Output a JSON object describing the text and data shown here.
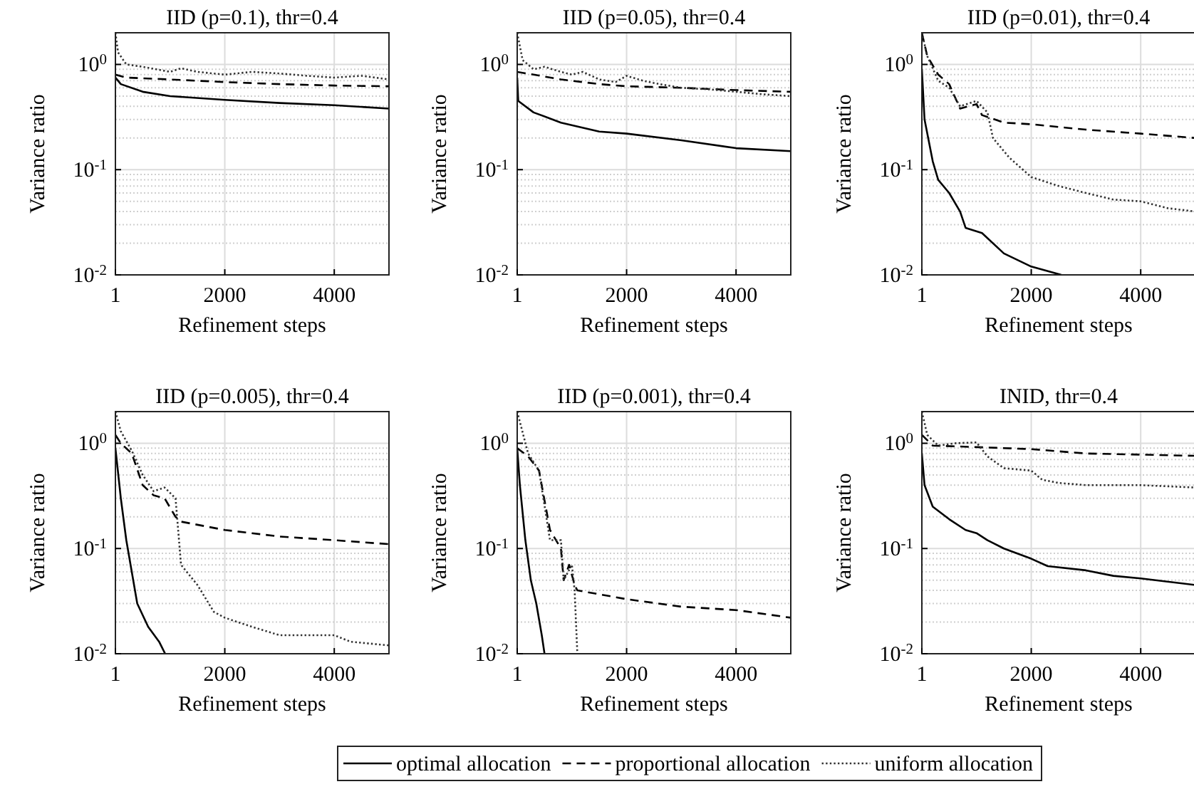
{
  "chart_data": [
    {
      "type": "line",
      "title": "IID (p=0.1), thr=0.4",
      "xlabel": "Refinement steps",
      "ylabel": "Variance ratio",
      "log": "y",
      "grid": true,
      "xlim": [
        1,
        5000
      ],
      "xticks": [
        1,
        2000,
        4000
      ],
      "ylim": [
        0.01,
        2
      ],
      "yticks": [
        {
          "value": 0.01,
          "label": "10$^{-2}$"
        },
        {
          "value": 0.1,
          "label": "10$^{-1}$"
        },
        {
          "value": 1,
          "label": "10$^{0}$"
        }
      ],
      "series": [
        {
          "color": "#000000",
          "line_style": "solid",
          "x": [
            1,
            100,
            500,
            1000,
            2000,
            3000,
            4000,
            5000
          ],
          "values": [
            0.75,
            0.65,
            0.55,
            0.5,
            0.46,
            0.43,
            0.41,
            0.38
          ]
        },
        {
          "color": "#000000",
          "line_style": "dashed",
          "x": [
            1,
            200,
            1000,
            2000,
            3000,
            4000,
            5000
          ],
          "values": [
            0.8,
            0.75,
            0.72,
            0.68,
            0.65,
            0.63,
            0.62
          ]
        },
        {
          "color": "#333333",
          "line_style": "dotted",
          "x": [
            1,
            50,
            200,
            500,
            1000,
            1200,
            1500,
            2000,
            2500,
            3000,
            3500,
            4000,
            4500,
            5000
          ],
          "values": [
            2,
            1.3,
            1.0,
            0.95,
            0.85,
            0.92,
            0.85,
            0.8,
            0.85,
            0.82,
            0.78,
            0.75,
            0.78,
            0.72
          ]
        }
      ]
    },
    {
      "type": "line",
      "title": "IID (p=0.05), thr=0.4",
      "xlabel": "Refinement steps",
      "ylabel": "Variance ratio",
      "log": "y",
      "grid": true,
      "xlim": [
        1,
        5000
      ],
      "xticks": [
        1,
        2000,
        4000
      ],
      "ylim": [
        0.01,
        2
      ],
      "yticks": [
        {
          "value": 0.01,
          "label": "10$^{-2}$"
        },
        {
          "value": 0.1,
          "label": "10$^{-1}$"
        },
        {
          "value": 1,
          "label": "10$^{0}$"
        }
      ],
      "series": [
        {
          "color": "#000000",
          "line_style": "solid",
          "x": [
            1,
            20,
            300,
            800,
            1500,
            2000,
            3000,
            4000,
            5000
          ],
          "values": [
            0.75,
            0.45,
            0.35,
            0.28,
            0.23,
            0.22,
            0.19,
            0.16,
            0.15
          ]
        },
        {
          "color": "#000000",
          "line_style": "dashed",
          "x": [
            1,
            300,
            800,
            1500,
            2000,
            3000,
            4000,
            5000
          ],
          "values": [
            0.85,
            0.8,
            0.72,
            0.65,
            0.62,
            0.6,
            0.57,
            0.55
          ]
        },
        {
          "color": "#333333",
          "line_style": "dotted",
          "x": [
            1,
            100,
            300,
            500,
            800,
            1000,
            1200,
            1500,
            1800,
            2000,
            2300,
            2600,
            3000,
            3500,
            4000,
            4500,
            5000
          ],
          "values": [
            2,
            1.1,
            0.9,
            0.95,
            0.85,
            0.8,
            0.85,
            0.72,
            0.68,
            0.78,
            0.7,
            0.65,
            0.6,
            0.58,
            0.55,
            0.52,
            0.5
          ]
        }
      ]
    },
    {
      "type": "line",
      "title": "IID (p=0.01), thr=0.4",
      "xlabel": "Refinement steps",
      "ylabel": "Variance ratio",
      "log": "y",
      "grid": true,
      "xlim": [
        1,
        5000
      ],
      "xticks": [
        1,
        2000,
        4000
      ],
      "ylim": [
        0.01,
        2
      ],
      "yticks": [
        {
          "value": 0.01,
          "label": "10$^{-2}$"
        },
        {
          "value": 0.1,
          "label": "10$^{-1}$"
        },
        {
          "value": 1,
          "label": "10$^{0}$"
        }
      ],
      "series": [
        {
          "color": "#000000",
          "line_style": "solid",
          "x": [
            1,
            50,
            200,
            300,
            500,
            700,
            800,
            1100,
            1500,
            2000,
            2550
          ],
          "values": [
            0.9,
            0.3,
            0.12,
            0.08,
            0.06,
            0.04,
            0.028,
            0.025,
            0.016,
            0.012,
            0.01
          ]
        },
        {
          "color": "#000000",
          "line_style": "dashed",
          "x": [
            1,
            100,
            300,
            500,
            700,
            1000,
            1100,
            1500,
            2000,
            3000,
            4000,
            5000
          ],
          "values": [
            2,
            1.2,
            0.8,
            0.65,
            0.38,
            0.42,
            0.33,
            0.28,
            0.27,
            0.24,
            0.22,
            0.2
          ]
        },
        {
          "color": "#333333",
          "line_style": "dotted",
          "x": [
            1,
            100,
            300,
            500,
            700,
            1000,
            1200,
            1300,
            1600,
            2000,
            2500,
            3000,
            3500,
            4000,
            4500,
            5000
          ],
          "values": [
            2,
            1.2,
            0.7,
            0.6,
            0.4,
            0.45,
            0.35,
            0.2,
            0.13,
            0.085,
            0.07,
            0.06,
            0.052,
            0.05,
            0.043,
            0.04
          ]
        }
      ]
    },
    {
      "type": "line",
      "title": "IID (p=0.005), thr=0.4",
      "xlabel": "Refinement steps",
      "ylabel": "Variance ratio",
      "log": "y",
      "grid": true,
      "xlim": [
        1,
        5000
      ],
      "xticks": [
        1,
        2000,
        4000
      ],
      "ylim": [
        0.01,
        2
      ],
      "yticks": [
        {
          "value": 0.01,
          "label": "10$^{-2}$"
        },
        {
          "value": 0.1,
          "label": "10$^{-1}$"
        },
        {
          "value": 1,
          "label": "10$^{0}$"
        }
      ],
      "series": [
        {
          "color": "#000000",
          "line_style": "solid",
          "x": [
            1,
            100,
            200,
            300,
            400,
            600,
            800,
            910
          ],
          "values": [
            0.9,
            0.3,
            0.12,
            0.06,
            0.03,
            0.018,
            0.013,
            0.01
          ]
        },
        {
          "color": "#000000",
          "line_style": "dashed",
          "x": [
            1,
            100,
            300,
            500,
            700,
            900,
            1100,
            1200,
            2000,
            3000,
            4000,
            5000
          ],
          "values": [
            1.2,
            1.0,
            0.8,
            0.4,
            0.32,
            0.3,
            0.2,
            0.18,
            0.15,
            0.13,
            0.12,
            0.11
          ]
        },
        {
          "color": "#333333",
          "line_style": "dotted",
          "x": [
            1,
            100,
            300,
            500,
            700,
            900,
            1100,
            1200,
            1500,
            1800,
            2000,
            2500,
            3000,
            4000,
            4300,
            5000
          ],
          "values": [
            2,
            1.3,
            0.85,
            0.5,
            0.35,
            0.38,
            0.3,
            0.07,
            0.045,
            0.025,
            0.022,
            0.018,
            0.015,
            0.015,
            0.013,
            0.012
          ]
        }
      ]
    },
    {
      "type": "line",
      "title": "IID (p=0.001), thr=0.4",
      "xlabel": "Refinement steps",
      "ylabel": "Variance ratio",
      "log": "y",
      "grid": true,
      "xlim": [
        1,
        5000
      ],
      "xticks": [
        1,
        2000,
        4000
      ],
      "ylim": [
        0.01,
        2
      ],
      "yticks": [
        {
          "value": 0.01,
          "label": "10$^{-2}$"
        },
        {
          "value": 0.1,
          "label": "10$^{-1}$"
        },
        {
          "value": 1,
          "label": "10$^{0}$"
        }
      ],
      "series": [
        {
          "color": "#000000",
          "line_style": "solid",
          "x": [
            1,
            50,
            150,
            250,
            350,
            450,
            500
          ],
          "values": [
            0.9,
            0.4,
            0.12,
            0.05,
            0.03,
            0.015,
            0.01
          ]
        },
        {
          "color": "#000000",
          "line_style": "dashed",
          "x": [
            1,
            200,
            400,
            600,
            800,
            850,
            950,
            1050,
            1100,
            2000,
            3000,
            4000,
            5000
          ],
          "values": [
            0.9,
            0.75,
            0.55,
            0.15,
            0.1,
            0.05,
            0.07,
            0.045,
            0.04,
            0.033,
            0.028,
            0.026,
            0.022
          ]
        },
        {
          "color": "#333333",
          "line_style": "dotted",
          "x": [
            1,
            200,
            400,
            600,
            800,
            850,
            1000,
            1050,
            1100
          ],
          "values": [
            2,
            0.8,
            0.55,
            0.12,
            0.12,
            0.05,
            0.07,
            0.04,
            0.01
          ]
        }
      ]
    },
    {
      "type": "line",
      "title": "INID, thr=0.4",
      "xlabel": "Refinement steps",
      "ylabel": "Variance ratio",
      "log": "y",
      "grid": true,
      "legend": "bottom",
      "xlim": [
        1,
        5000
      ],
      "xticks": [
        1,
        2000,
        4000
      ],
      "ylim": [
        0.01,
        2
      ],
      "yticks": [
        {
          "value": 0.01,
          "label": "10$^{-2}$"
        },
        {
          "value": 0.1,
          "label": "10$^{-1}$"
        },
        {
          "value": 1,
          "label": "10$^{0}$"
        }
      ],
      "series": [
        {
          "name": "optimal allocation",
          "color": "#000000",
          "line_style": "solid",
          "x": [
            1,
            50,
            200,
            500,
            800,
            1000,
            1200,
            1500,
            2000,
            2300,
            3000,
            3500,
            4000,
            5000
          ],
          "values": [
            0.8,
            0.4,
            0.25,
            0.19,
            0.15,
            0.14,
            0.12,
            0.1,
            0.08,
            0.068,
            0.062,
            0.055,
            0.052,
            0.045
          ]
        },
        {
          "name": "proportional allocation",
          "color": "#000000",
          "line_style": "dashed",
          "x": [
            1,
            200,
            1000,
            2000,
            3000,
            4000,
            5000
          ],
          "values": [
            1.2,
            0.95,
            0.92,
            0.88,
            0.8,
            0.78,
            0.76
          ]
        },
        {
          "name": "uniform allocation",
          "color": "#333333",
          "line_style": "dotted",
          "x": [
            1,
            100,
            300,
            600,
            1000,
            1200,
            1500,
            2000,
            2200,
            2500,
            3000,
            4000,
            5000
          ],
          "values": [
            2,
            1.2,
            0.95,
            1.0,
            1.02,
            0.75,
            0.58,
            0.55,
            0.45,
            0.42,
            0.4,
            0.4,
            0.38
          ]
        }
      ]
    }
  ]
}
